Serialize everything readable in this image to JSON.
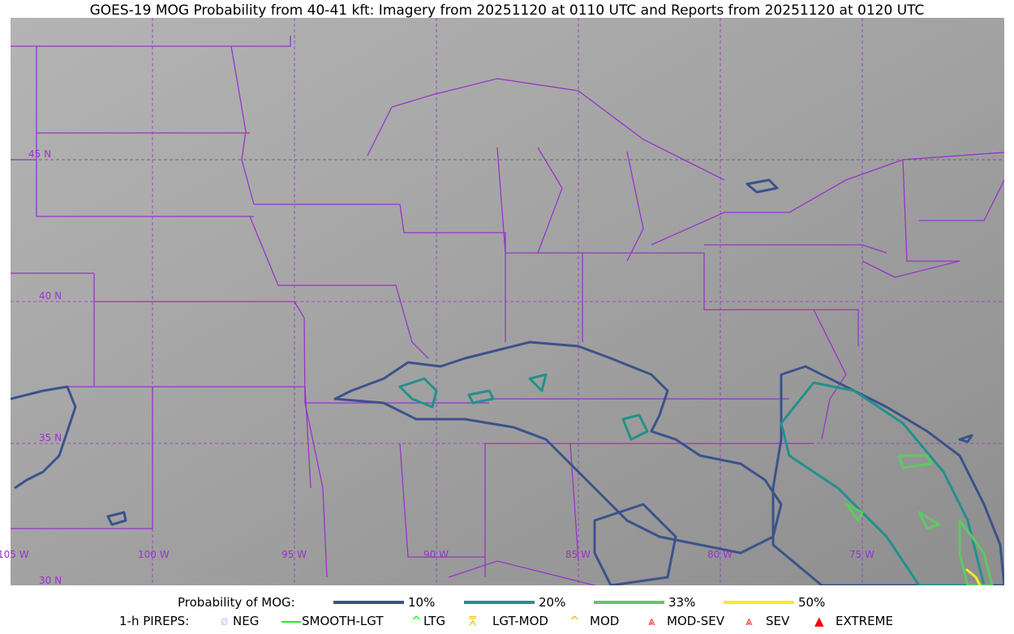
{
  "title": "GOES-19 MOG Probability from 40-41 kft: Imagery from 20251120 at 0110 UTC and Reports from 20251120 at 0120 UTC",
  "map": {
    "lon_labels": [
      "105 W",
      "100 W",
      "95 W",
      "90 W",
      "85 W",
      "80 W",
      "75 W"
    ],
    "lat_labels": [
      "45 N",
      "40 N",
      "35 N",
      "30 N"
    ],
    "boundary_color": "#9933cc"
  },
  "legend": {
    "prob_title": "Probability of MOG:",
    "prob_levels": [
      {
        "label": "10%",
        "color": "#3b528b"
      },
      {
        "label": "20%",
        "color": "#21918c"
      },
      {
        "label": "33%",
        "color": "#5ec962"
      },
      {
        "label": "50%",
        "color": "#fde725"
      }
    ],
    "pireps_title": "1-h PIREPS:",
    "pireps": [
      {
        "label": "NEG",
        "icon": "neg-icon",
        "color": "#c8c8ff"
      },
      {
        "label": "SMOOTH-LGT",
        "icon": "line-icon",
        "color": "#00ff00"
      },
      {
        "label": "LTG",
        "icon": "caret-icon",
        "color": "#00ff00"
      },
      {
        "label": "LGT-MOD",
        "icon": "caret-bar-icon",
        "color": "#ffb000"
      },
      {
        "label": "MOD",
        "icon": "caret-icon",
        "color": "#ffb000"
      },
      {
        "label": "MOD-SEV",
        "icon": "double-caret-icon",
        "color": "#ff2020"
      },
      {
        "label": "SEV",
        "icon": "double-caret-icon",
        "color": "#ff2020"
      },
      {
        "label": "EXTREME",
        "icon": "filled-triangle-icon",
        "color": "#ff0000"
      }
    ]
  }
}
